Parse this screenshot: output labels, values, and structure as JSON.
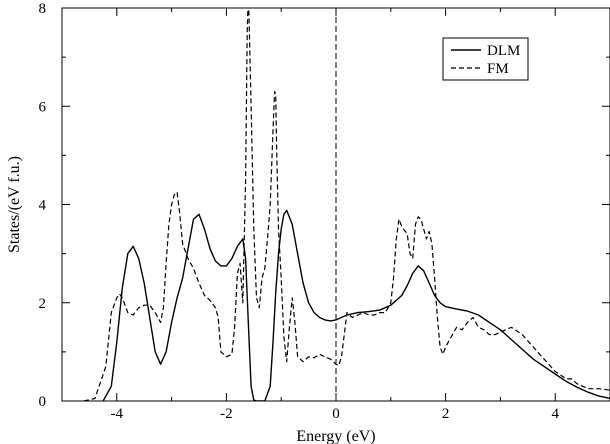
{
  "chart_data": {
    "type": "line",
    "title": "",
    "xlabel": "Energy (eV)",
    "ylabel": "States/(eV f.u.)",
    "xlim": [
      -5,
      5
    ],
    "ylim": [
      0,
      8
    ],
    "x_ticks": [
      -4,
      -2,
      0,
      2,
      4
    ],
    "y_ticks": [
      0,
      2,
      4,
      6,
      8
    ],
    "x_tick_labels": [
      "-4",
      "-2",
      "0",
      "2",
      "4"
    ],
    "y_tick_labels": [
      "0",
      "2",
      "4",
      "6",
      "8"
    ],
    "grid": false,
    "legend_position": "top-right",
    "fermi_level": 0,
    "series": [
      {
        "name": "DLM",
        "style": "solid",
        "color": "#000000",
        "x": [
          -4.25,
          -4.1,
          -4.0,
          -3.9,
          -3.8,
          -3.7,
          -3.6,
          -3.5,
          -3.4,
          -3.3,
          -3.2,
          -3.1,
          -3.0,
          -2.9,
          -2.8,
          -2.7,
          -2.6,
          -2.5,
          -2.4,
          -2.3,
          -2.2,
          -2.1,
          -2.0,
          -1.9,
          -1.8,
          -1.7,
          -1.65,
          -1.6,
          -1.55,
          -1.5,
          -1.45,
          -1.4,
          -1.3,
          -1.2,
          -1.15,
          -1.1,
          -1.05,
          -1.0,
          -0.95,
          -0.9,
          -0.8,
          -0.7,
          -0.6,
          -0.5,
          -0.4,
          -0.3,
          -0.2,
          -0.1,
          0.0,
          0.2,
          0.4,
          0.6,
          0.8,
          1.0,
          1.2,
          1.3,
          1.4,
          1.5,
          1.6,
          1.7,
          1.8,
          1.9,
          2.0,
          2.2,
          2.4,
          2.6,
          2.8,
          3.0,
          3.2,
          3.4,
          3.6,
          3.8,
          4.0,
          4.2,
          4.4,
          4.6,
          4.8,
          5.0
        ],
        "y": [
          0.0,
          0.3,
          1.2,
          2.3,
          3.0,
          3.15,
          2.9,
          2.4,
          1.7,
          1.0,
          0.75,
          1.0,
          1.6,
          2.1,
          2.5,
          3.1,
          3.7,
          3.8,
          3.5,
          3.1,
          2.85,
          2.75,
          2.75,
          2.9,
          3.15,
          3.3,
          2.9,
          1.6,
          0.3,
          0.02,
          0.0,
          0.0,
          0.0,
          0.3,
          1.2,
          2.2,
          3.0,
          3.5,
          3.8,
          3.88,
          3.6,
          3.0,
          2.4,
          2.0,
          1.8,
          1.7,
          1.65,
          1.63,
          1.65,
          1.75,
          1.8,
          1.82,
          1.85,
          1.95,
          2.15,
          2.35,
          2.6,
          2.75,
          2.65,
          2.4,
          2.15,
          2.0,
          1.92,
          1.87,
          1.83,
          1.75,
          1.6,
          1.45,
          1.25,
          1.05,
          0.85,
          0.7,
          0.55,
          0.4,
          0.28,
          0.18,
          0.1,
          0.05
        ]
      },
      {
        "name": "FM",
        "style": "dashed",
        "color": "#000000",
        "x": [
          -4.6,
          -4.4,
          -4.2,
          -4.1,
          -4.0,
          -3.95,
          -3.9,
          -3.8,
          -3.7,
          -3.6,
          -3.5,
          -3.4,
          -3.3,
          -3.2,
          -3.15,
          -3.1,
          -3.05,
          -3.0,
          -2.95,
          -2.9,
          -2.85,
          -2.8,
          -2.7,
          -2.6,
          -2.5,
          -2.4,
          -2.3,
          -2.2,
          -2.15,
          -2.1,
          -2.0,
          -1.9,
          -1.85,
          -1.8,
          -1.75,
          -1.7,
          -1.65,
          -1.62,
          -1.6,
          -1.58,
          -1.55,
          -1.5,
          -1.45,
          -1.4,
          -1.35,
          -1.3,
          -1.25,
          -1.2,
          -1.15,
          -1.12,
          -1.1,
          -1.08,
          -1.05,
          -1.0,
          -0.95,
          -0.9,
          -0.85,
          -0.8,
          -0.75,
          -0.7,
          -0.6,
          -0.5,
          -0.4,
          -0.3,
          -0.2,
          -0.1,
          0.0,
          0.05,
          0.1,
          0.2,
          0.3,
          0.4,
          0.5,
          0.6,
          0.7,
          0.8,
          0.9,
          1.0,
          1.05,
          1.1,
          1.15,
          1.2,
          1.3,
          1.35,
          1.4,
          1.45,
          1.5,
          1.55,
          1.6,
          1.65,
          1.7,
          1.75,
          1.8,
          1.85,
          1.9,
          1.95,
          2.0,
          2.1,
          2.2,
          2.3,
          2.4,
          2.5,
          2.6,
          2.7,
          2.8,
          2.9,
          3.0,
          3.2,
          3.4,
          3.6,
          3.8,
          4.0,
          4.2,
          4.3,
          4.4,
          4.6,
          4.8,
          5.0
        ],
        "y": [
          0.0,
          0.05,
          0.7,
          1.8,
          2.1,
          2.18,
          2.1,
          1.8,
          1.75,
          1.9,
          1.95,
          1.95,
          1.8,
          1.6,
          1.9,
          2.8,
          3.6,
          4.0,
          4.2,
          4.25,
          3.8,
          3.2,
          2.9,
          2.7,
          2.4,
          2.15,
          2.05,
          1.9,
          1.7,
          1.0,
          0.9,
          0.95,
          1.5,
          2.6,
          2.8,
          2.0,
          4.5,
          7.5,
          8.3,
          7.5,
          6.0,
          3.5,
          2.1,
          1.9,
          2.5,
          2.7,
          3.3,
          4.0,
          5.5,
          6.3,
          6.25,
          5.0,
          3.5,
          2.5,
          1.3,
          0.8,
          1.5,
          2.1,
          1.6,
          0.9,
          0.8,
          0.9,
          0.88,
          0.95,
          0.9,
          0.85,
          0.75,
          0.72,
          0.9,
          1.8,
          1.7,
          1.75,
          1.8,
          1.75,
          1.75,
          1.8,
          1.8,
          2.0,
          2.5,
          3.3,
          3.7,
          3.55,
          3.4,
          3.0,
          2.9,
          3.6,
          3.75,
          3.7,
          3.5,
          3.3,
          3.45,
          3.2,
          2.5,
          1.7,
          1.1,
          0.95,
          1.1,
          1.3,
          1.5,
          1.45,
          1.6,
          1.7,
          1.5,
          1.45,
          1.35,
          1.35,
          1.4,
          1.5,
          1.35,
          1.1,
          0.85,
          0.6,
          0.45,
          0.45,
          0.35,
          0.25,
          0.25,
          0.22
        ]
      }
    ]
  }
}
